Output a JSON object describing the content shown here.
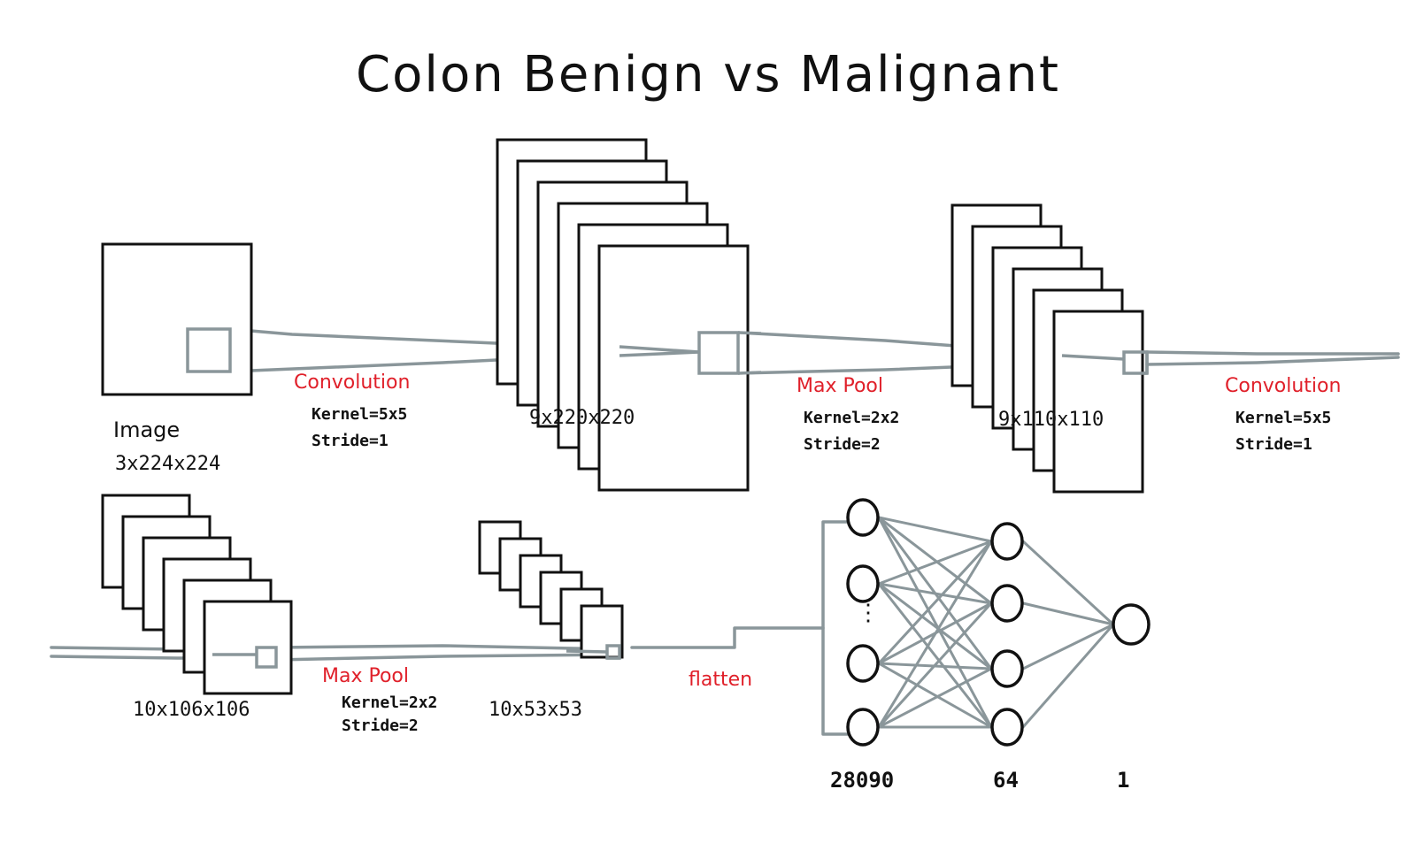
{
  "title": "Colon Benign vs Malignant",
  "colors": {
    "ink": "#111111",
    "connector": "#8a969a",
    "operation": "#e0202a"
  },
  "layers": [
    {
      "id": "image",
      "name": "Image",
      "shape": "3x224x224"
    },
    {
      "id": "conv1",
      "shape": "9x220x220"
    },
    {
      "id": "pool1",
      "shape": "9x110x110"
    },
    {
      "id": "conv2",
      "shape": "10x106x106"
    },
    {
      "id": "pool2",
      "shape": "10x53x53"
    }
  ],
  "operations": [
    {
      "id": "op-conv1",
      "name": "Convolution",
      "kernel": "Kernel=5x5",
      "stride": "Stride=1"
    },
    {
      "id": "op-pool1",
      "name": "Max Pool",
      "kernel": "Kernel=2x2",
      "stride": "Stride=2"
    },
    {
      "id": "op-conv2",
      "name": "Convolution",
      "kernel": "Kernel=5x5",
      "stride": "Stride=1"
    },
    {
      "id": "op-pool2",
      "name": "Max Pool",
      "kernel": "Kernel=2x2",
      "stride": "Stride=2"
    },
    {
      "id": "op-flatten",
      "name": "flatten"
    }
  ],
  "dense": {
    "layer_sizes": [
      "28090",
      "64",
      "1"
    ],
    "ellipsis": "⋮"
  }
}
